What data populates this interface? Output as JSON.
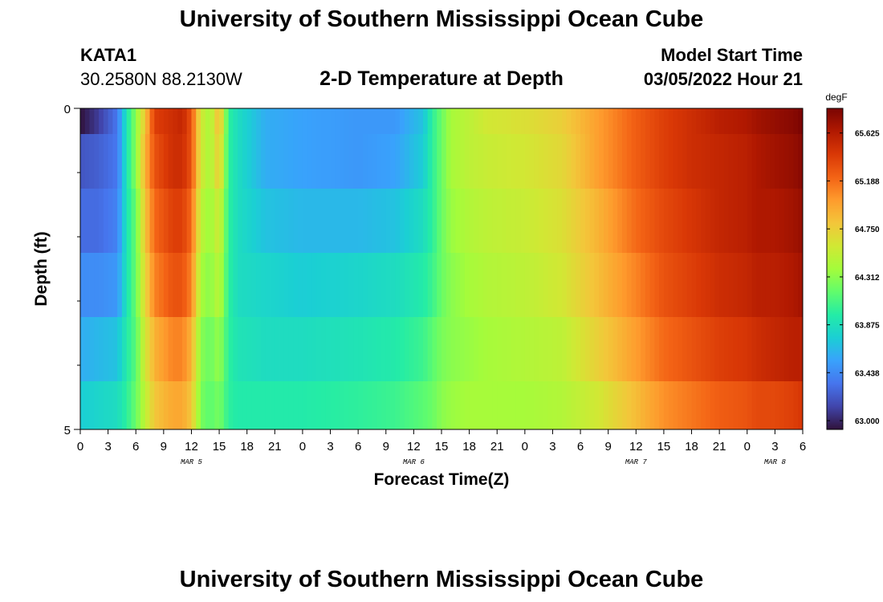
{
  "header": {
    "institution": "University of Southern Mississippi Ocean Cube",
    "station": "KATA1",
    "coordinates": "30.2580N  88.2130W",
    "subtitle": "2-D Temperature at Depth",
    "start_label": "Model Start Time",
    "start_value": "03/05/2022 Hour 21"
  },
  "footer": {
    "institution": "University of Southern Mississippi Ocean Cube"
  },
  "colors": {
    "colormap": [
      "#30123b",
      "#4145ab",
      "#4675ed",
      "#39a2fc",
      "#1bcfd4",
      "#24eca6",
      "#61fc6c",
      "#a4fc3b",
      "#d1e834",
      "#f3c63a",
      "#fe9b2d",
      "#f36315",
      "#d93806",
      "#b11901",
      "#7a0402"
    ]
  },
  "chart_data": {
    "type": "heatmap",
    "title": "2-D Temperature at Depth",
    "xlabel": "Forecast Time(Z)",
    "ylabel": "Depth (ft)",
    "x_tick_labels": [
      "0",
      "3",
      "6",
      "9",
      "12",
      "15",
      "18",
      "21",
      "0",
      "3",
      "6",
      "9",
      "12",
      "15",
      "18",
      "21",
      "0",
      "3",
      "6",
      "9",
      "12",
      "15",
      "18",
      "21",
      "0",
      "3",
      "6"
    ],
    "date_labels": [
      {
        "label": "MAR 5",
        "hour": 12
      },
      {
        "label": "MAR 6",
        "hour": 36
      },
      {
        "label": "MAR 7",
        "hour": 60
      },
      {
        "label": "MAR 8",
        "hour": 75
      }
    ],
    "x_range_hours": [
      0,
      78
    ],
    "y_tick_labels": [
      "0",
      "5"
    ],
    "ylim": [
      0,
      5
    ],
    "colorbar": {
      "unit": "degF",
      "min": 62.92,
      "max": 65.85,
      "tick_labels": [
        "63.000",
        "63.438",
        "63.875",
        "64.312",
        "64.750",
        "65.188",
        "65.625"
      ]
    },
    "time_hours": [
      0,
      2,
      4,
      5,
      6,
      7,
      8,
      10,
      11,
      12,
      13,
      14,
      15,
      16,
      17,
      20,
      24,
      30,
      34,
      37,
      38,
      39,
      40,
      42,
      44,
      48,
      52,
      56,
      60,
      63,
      66,
      69,
      72,
      73,
      75,
      77,
      78
    ],
    "depth_layers": [
      {
        "depth_ft": 0.2,
        "values": [
          62.92,
          63.1,
          63.35,
          63.9,
          64.3,
          64.8,
          65.4,
          65.5,
          65.55,
          65.3,
          64.6,
          64.4,
          64.9,
          64.0,
          63.85,
          63.6,
          63.55,
          63.5,
          63.5,
          63.7,
          64.0,
          64.2,
          64.4,
          64.5,
          64.6,
          64.65,
          64.75,
          65.0,
          65.25,
          65.4,
          65.5,
          65.6,
          65.65,
          65.7,
          65.75,
          65.8,
          65.85
        ]
      },
      {
        "depth_ft": 0.75,
        "values": [
          63.2,
          63.25,
          63.35,
          63.9,
          64.3,
          64.9,
          65.3,
          65.5,
          65.5,
          65.3,
          64.6,
          64.4,
          64.8,
          64.0,
          63.85,
          63.6,
          63.55,
          63.5,
          63.55,
          63.75,
          64.0,
          64.2,
          64.4,
          64.5,
          64.55,
          64.6,
          64.7,
          65.0,
          65.25,
          65.4,
          65.5,
          65.55,
          65.6,
          65.65,
          65.7,
          65.75,
          65.8
        ]
      },
      {
        "depth_ft": 1.75,
        "values": [
          63.3,
          63.3,
          63.4,
          63.9,
          64.2,
          64.8,
          65.2,
          65.4,
          65.4,
          65.2,
          64.5,
          64.35,
          64.6,
          64.0,
          63.85,
          63.7,
          63.65,
          63.65,
          63.7,
          63.85,
          64.0,
          64.2,
          64.35,
          64.45,
          64.5,
          64.55,
          64.65,
          64.9,
          65.2,
          65.35,
          65.45,
          65.55,
          65.6,
          65.65,
          65.65,
          65.7,
          65.75
        ]
      },
      {
        "depth_ft": 2.75,
        "values": [
          63.45,
          63.45,
          63.5,
          63.9,
          64.2,
          64.7,
          65.1,
          65.3,
          65.3,
          65.1,
          64.4,
          64.3,
          64.5,
          64.0,
          63.85,
          63.8,
          63.75,
          63.8,
          63.85,
          63.95,
          64.05,
          64.2,
          64.3,
          64.4,
          64.45,
          64.5,
          64.6,
          64.85,
          65.1,
          65.3,
          65.4,
          65.5,
          65.55,
          65.6,
          65.6,
          65.65,
          65.7
        ]
      },
      {
        "depth_ft": 3.75,
        "values": [
          63.6,
          63.65,
          63.7,
          63.95,
          64.15,
          64.6,
          64.9,
          65.1,
          65.1,
          64.9,
          64.3,
          64.2,
          64.35,
          64.0,
          63.9,
          63.85,
          63.85,
          63.9,
          63.95,
          64.05,
          64.15,
          64.25,
          64.3,
          64.35,
          64.4,
          64.45,
          64.5,
          64.75,
          65.0,
          65.2,
          65.3,
          65.4,
          65.45,
          65.5,
          65.55,
          65.6,
          65.6
        ]
      },
      {
        "depth_ft": 4.75,
        "values": [
          63.75,
          63.8,
          63.85,
          64.0,
          64.2,
          64.5,
          64.8,
          64.95,
          64.95,
          64.8,
          64.25,
          64.15,
          64.25,
          64.0,
          63.95,
          63.95,
          63.95,
          64.0,
          64.05,
          64.15,
          64.2,
          64.3,
          64.35,
          64.4,
          64.4,
          64.4,
          64.45,
          64.6,
          64.85,
          65.05,
          65.15,
          65.25,
          65.3,
          65.35,
          65.35,
          65.4,
          65.45
        ]
      }
    ]
  }
}
